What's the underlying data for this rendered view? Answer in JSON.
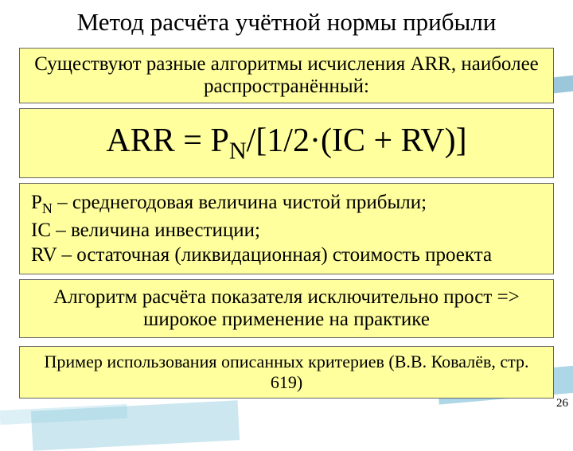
{
  "title": "Метод расчёта учётной нормы прибыли",
  "intro": "Существуют разные алгоритмы исчисления ARR, наиболее распространённый:",
  "formula": {
    "prefix": "ARR = P",
    "sub1": "N",
    "bracket_open": "/[1/2·(IC + RV)]"
  },
  "legend": {
    "line1_pre": "P",
    "line1_sub": "N",
    "line1_post": " – среднегодовая величина чистой прибыли;",
    "line2": "IC – величина инвестиции;",
    "line3": "RV – остаточная (ликвидационная) стоимость проекта"
  },
  "simple": "Алгоритм расчёта показателя исключительно прост => широкое применение на практике",
  "example": "Пример использования описанных критериев (В.В. Ковалёв, стр. 619)",
  "page_number": "26",
  "colors": {
    "box_bg": "#ffff9e",
    "box_border": "#666666",
    "text": "#000000",
    "background": "#ffffff"
  }
}
